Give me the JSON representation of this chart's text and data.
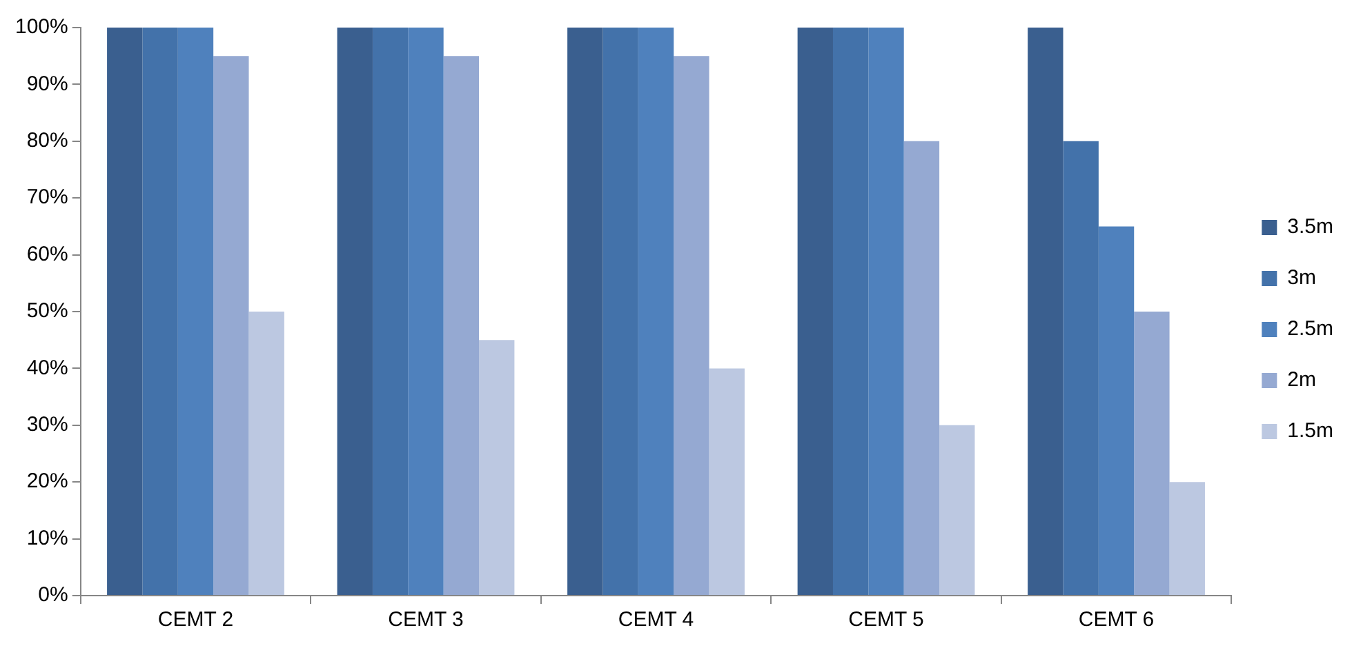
{
  "chart_data": {
    "type": "bar",
    "categories": [
      "CEMT 2",
      "CEMT 3",
      "CEMT 4",
      "CEMT 5",
      "CEMT 6"
    ],
    "series": [
      {
        "name": "3.5m",
        "color": "#3a5f8f",
        "values": [
          100,
          100,
          100,
          100,
          100
        ]
      },
      {
        "name": "3m",
        "color": "#4372aa",
        "values": [
          100,
          100,
          100,
          100,
          80
        ]
      },
      {
        "name": "2.5m",
        "color": "#4f81bd",
        "values": [
          100,
          100,
          100,
          100,
          65
        ]
      },
      {
        "name": "2m",
        "color": "#95a9d2",
        "values": [
          95,
          95,
          95,
          80,
          50
        ]
      },
      {
        "name": "1.5m",
        "color": "#bcc8e1",
        "values": [
          50,
          45,
          40,
          30,
          20
        ]
      }
    ],
    "ylim": [
      0,
      100
    ],
    "yticks": [
      {
        "value": 0,
        "label": "0%"
      },
      {
        "value": 10,
        "label": "10%"
      },
      {
        "value": 20,
        "label": "20%"
      },
      {
        "value": 30,
        "label": "30%"
      },
      {
        "value": 40,
        "label": "40%"
      },
      {
        "value": 50,
        "label": "50%"
      },
      {
        "value": 60,
        "label": "60%"
      },
      {
        "value": 70,
        "label": "70%"
      },
      {
        "value": 80,
        "label": "80%"
      },
      {
        "value": 90,
        "label": "90%"
      },
      {
        "value": 100,
        "label": "100%"
      }
    ],
    "grid": false,
    "legend": "right"
  }
}
